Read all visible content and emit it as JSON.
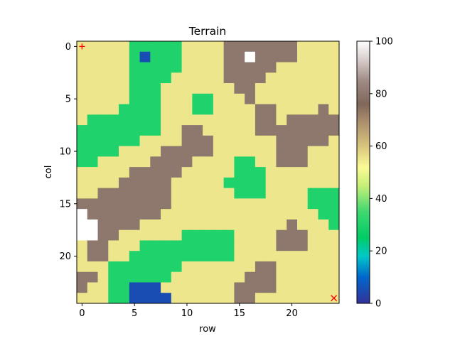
{
  "chart_data": {
    "type": "heatmap",
    "title": "Terrain",
    "xlabel": "row",
    "ylabel": "col",
    "xticks": [
      0,
      5,
      10,
      15,
      20
    ],
    "yticks": [
      0,
      5,
      10,
      15,
      20
    ],
    "xlim": [
      -0.5,
      24.5
    ],
    "ylim": [
      24.5,
      -0.5
    ],
    "colormap": "terrain",
    "colorbar": {
      "vmin": 0,
      "vmax": 100,
      "ticks": [
        0,
        20,
        40,
        60,
        80,
        100
      ]
    },
    "legend_values": {
      "water": 5,
      "grass": 30,
      "sand": 55,
      "rock": 80,
      "snow": 100
    },
    "grid_rows": [
      "SSSSSGGGGGSSSSRRRRRRRSSSS",
      "SSSSSGWGGGSSSSRRNRRRRSSSS",
      "SSSSSGGGGGSSSSRRRRRSSSSSS",
      "SSSSSGGGGSSSSSRRRRSSSSSSS",
      "SSSSSGGGSSSSSSSRRSSSSSSSS",
      "SSSSSGGGSSSGGSSSRSSSSSSSS",
      "SSSSGGGGSSSGGSSSSRRSSSSRS",
      "SGGGGGGGSSSSSSSSSRRSRRRRR",
      "GGGGGGGGSSRRSSSSSRRRRRRRR",
      "GGGGGGSSSSRRRSSSSSSRRRRRS",
      "GGGGSSSSRRRRRSSSSSSRRRSSS",
      "GGSSSSSRRRRSSSSGGSSRRRSSS",
      "SSSSSRRRRRSSSSSGGGSSSSSSS",
      "SSSSRRRRRSSSSSGGGGSSSSSSS",
      "SSRRRRRRRSSSSSSGGGSSSSGGG",
      "RRRRRRRRRSSSSSSSSSSSSSGGG",
      "NRRRRRRRSSSSSSSSSSSSSSSGG",
      "NNRRRRSSSSSSSSSSSSSSRSSSG",
      "NNRRSSSSSSGGGGGSSSSRRRSSS",
      "SRRSSSGGGGGGGGGSSSSRRRSSS",
      "SRRSSGGGGGGGGGGSSSSSSSSSS",
      "SSSGGGGGGGSSSSSSSRRSSSSSS",
      "RRSGGGGGGSSSSSSSRRRSSSSSS",
      "RSSGGWWWSSSSSSSRRRRSSSSSS",
      "SSSGGWWWWSSSSSSRRSSSSSSSS"
    ],
    "markers": [
      {
        "name": "start",
        "symbol": "+",
        "x": 0,
        "y": 0,
        "color": "#ff0000"
      },
      {
        "name": "goal",
        "symbol": "x",
        "x": 24,
        "y": 24,
        "color": "#ff0000"
      }
    ]
  }
}
